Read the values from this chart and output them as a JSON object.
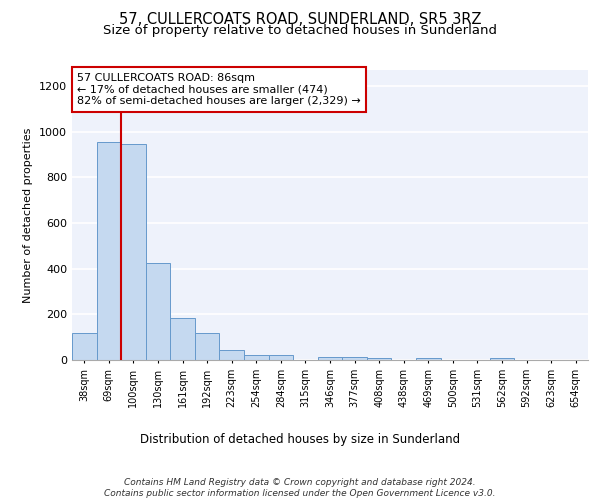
{
  "title": "57, CULLERCOATS ROAD, SUNDERLAND, SR5 3RZ",
  "subtitle": "Size of property relative to detached houses in Sunderland",
  "xlabel": "Distribution of detached houses by size in Sunderland",
  "ylabel": "Number of detached properties",
  "bar_labels": [
    "38sqm",
    "69sqm",
    "100sqm",
    "130sqm",
    "161sqm",
    "192sqm",
    "223sqm",
    "254sqm",
    "284sqm",
    "315sqm",
    "346sqm",
    "377sqm",
    "408sqm",
    "438sqm",
    "469sqm",
    "500sqm",
    "531sqm",
    "562sqm",
    "592sqm",
    "623sqm",
    "654sqm"
  ],
  "bar_values": [
    120,
    955,
    945,
    425,
    185,
    120,
    45,
    20,
    20,
    0,
    15,
    15,
    10,
    0,
    10,
    0,
    0,
    10,
    0,
    0,
    0
  ],
  "bar_color": "#c5d9f0",
  "bar_edgecolor": "#6699cc",
  "ylim": [
    0,
    1270
  ],
  "yticks": [
    0,
    200,
    400,
    600,
    800,
    1000,
    1200
  ],
  "vline_x_index": 1.5,
  "vline_color": "#cc0000",
  "annotation_line1": "57 CULLERCOATS ROAD: 86sqm",
  "annotation_line2": "← 17% of detached houses are smaller (474)",
  "annotation_line3": "82% of semi-detached houses are larger (2,329) →",
  "annotation_box_color": "#cc0000",
  "footnote": "Contains HM Land Registry data © Crown copyright and database right 2024.\nContains public sector information licensed under the Open Government Licence v3.0.",
  "bg_color": "#eef2fb",
  "grid_color": "#ffffff",
  "title_fontsize": 10.5,
  "subtitle_fontsize": 9.5,
  "annotation_fontsize": 8,
  "footnote_fontsize": 6.5,
  "ylabel_fontsize": 8,
  "xlabel_fontsize": 8.5
}
